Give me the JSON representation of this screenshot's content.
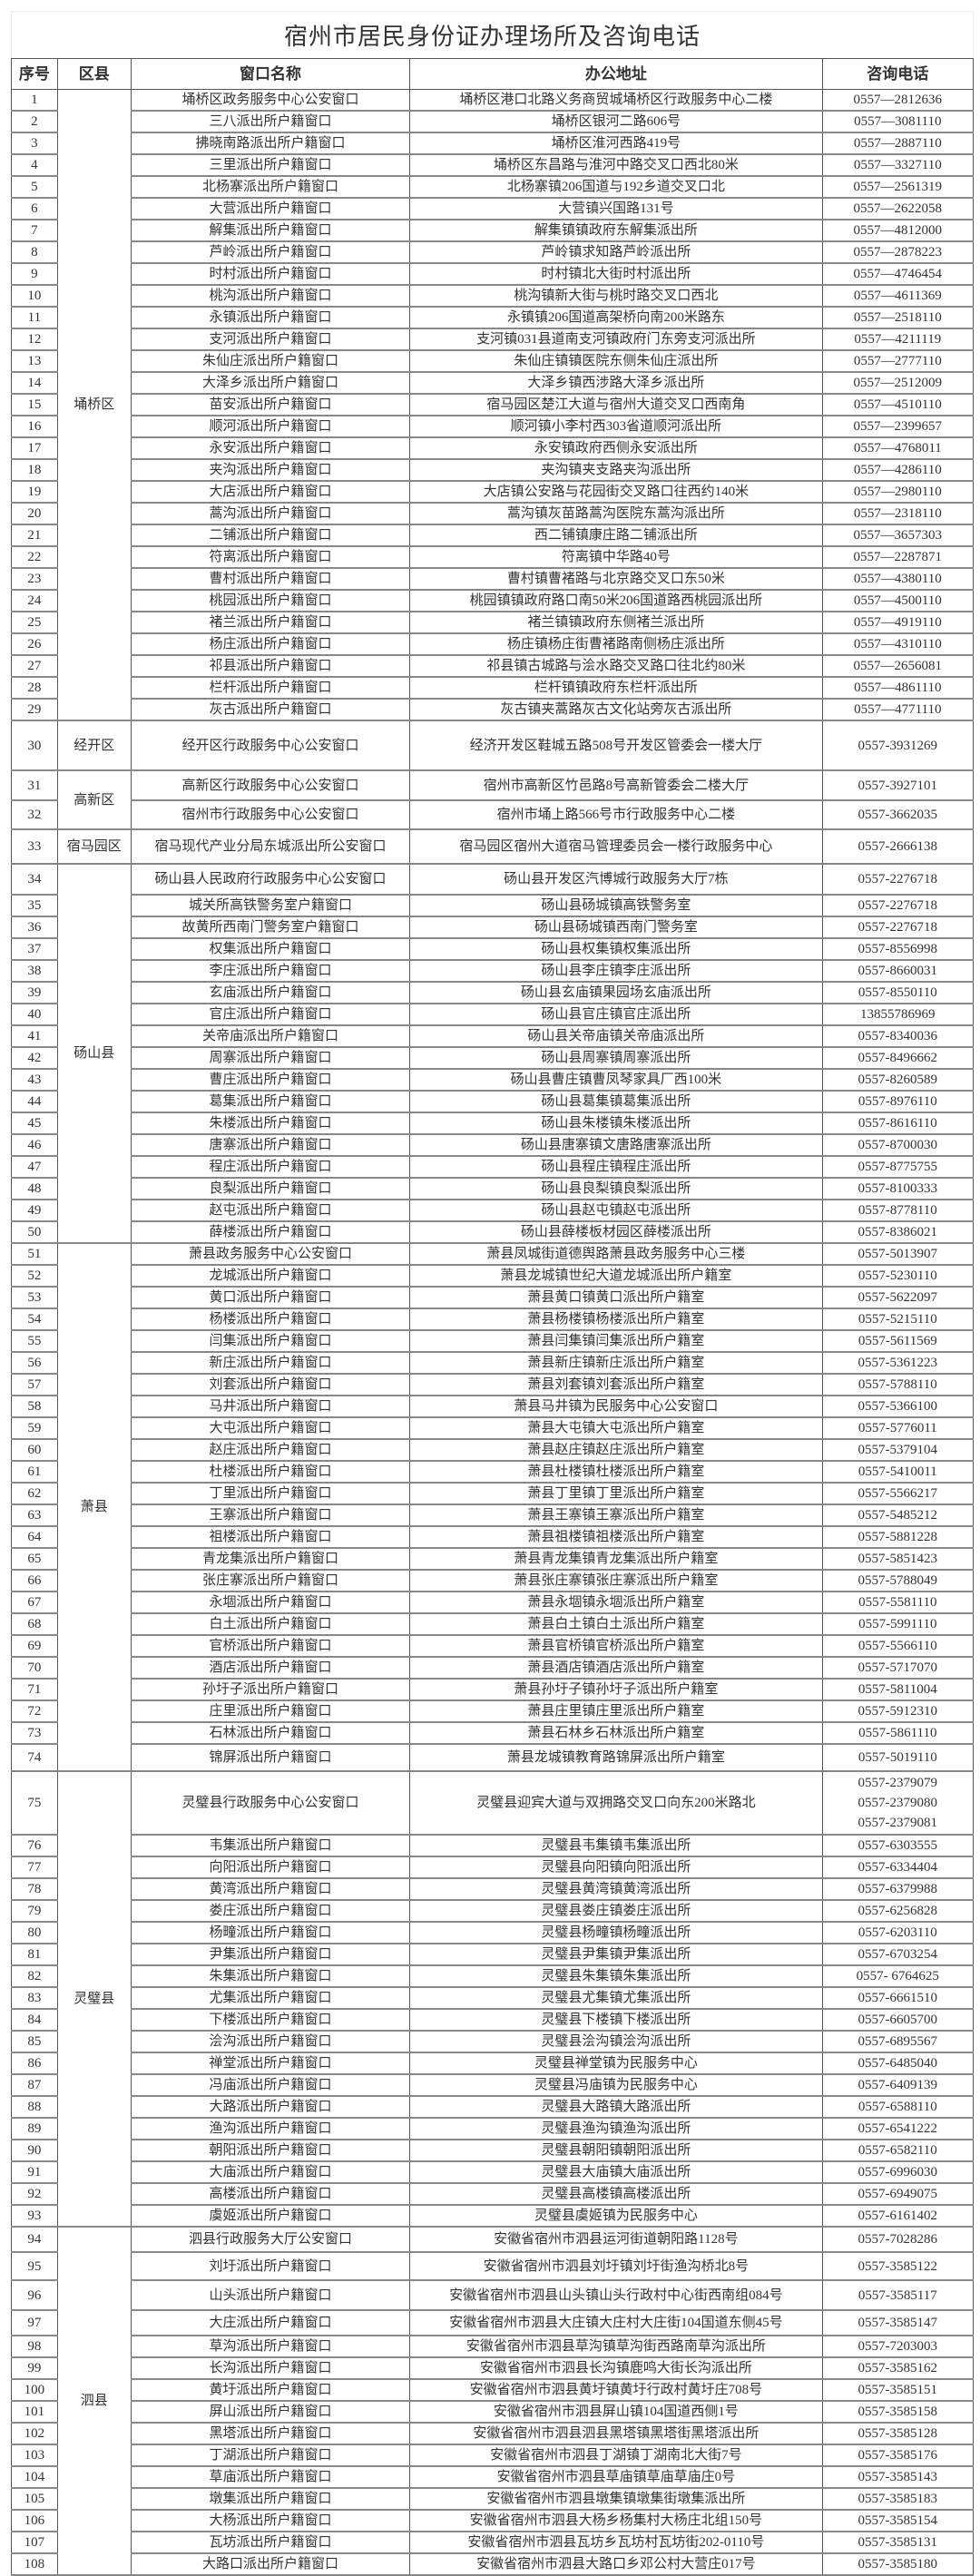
{
  "title": "宿州市居民身份证办理场所及咨询电话",
  "columns": [
    "序号",
    "区县",
    "窗口名称",
    "办公地址",
    "咨询电话"
  ],
  "groups": [
    {
      "district": "埇桥区",
      "rows": [
        {
          "no": "1",
          "window": "埇桥区政务服务中心公安窗口",
          "address": "埇桥区港口北路义务商贸城埇桥区行政服务中心二楼",
          "phone": [
            "0557—2812636"
          ]
        },
        {
          "no": "2",
          "window": "三八派出所户籍窗口",
          "address": "埇桥区银河二路606号",
          "phone": [
            "0557—3081110"
          ]
        },
        {
          "no": "3",
          "window": "拂晓南路派出所户籍窗口",
          "address": "埇桥区淮河西路419号",
          "phone": [
            "0557—2887110"
          ]
        },
        {
          "no": "4",
          "window": "三里派出所户籍窗口",
          "address": "埇桥区东昌路与淮河中路交叉口西北80米",
          "phone": [
            "0557—3327110"
          ]
        },
        {
          "no": "5",
          "window": "北杨寨派出所户籍窗口",
          "address": "北杨寨镇206国道与192乡道交叉口北",
          "phone": [
            "0557—2561319"
          ]
        },
        {
          "no": "6",
          "window": "大营派出所户籍窗口",
          "address": "大营镇兴国路131号",
          "phone": [
            "0557—2622058"
          ]
        },
        {
          "no": "7",
          "window": "解集派出所户籍窗口",
          "address": "解集镇镇政府东解集派出所",
          "phone": [
            "0557—4812000"
          ]
        },
        {
          "no": "8",
          "window": "芦岭派出所户籍窗口",
          "address": "芦岭镇求知路芦岭派出所",
          "phone": [
            "0557—2878223"
          ]
        },
        {
          "no": "9",
          "window": "时村派出所户籍窗口",
          "address": "时村镇北大街时村派出所",
          "phone": [
            "0557—4746454"
          ]
        },
        {
          "no": "10",
          "window": "桃沟派出所户籍窗口",
          "address": "桃沟镇新大街与桃时路交叉口西北",
          "phone": [
            "0557—4611369"
          ]
        },
        {
          "no": "11",
          "window": "永镇派出所户籍窗口",
          "address": "永镇镇206国道高架桥向南200米路东",
          "phone": [
            "0557—2518110"
          ]
        },
        {
          "no": "12",
          "window": "支河派出所户籍窗口",
          "address": "支河镇031县道南支河镇政府门东旁支河派出所",
          "phone": [
            "0557—4211119"
          ]
        },
        {
          "no": "13",
          "window": "朱仙庄派出所户籍窗口",
          "address": "朱仙庄镇镇医院东侧朱仙庄派出所",
          "phone": [
            "0557—2777110"
          ]
        },
        {
          "no": "14",
          "window": "大泽乡派出所户籍窗口",
          "address": "大泽乡镇西涉路大泽乡派出所",
          "phone": [
            "0557—2512009"
          ]
        },
        {
          "no": "15",
          "window": "苗安派出所户籍窗口",
          "address": "宿马园区楚江大道与宿州大道交叉口西南角",
          "phone": [
            "0557—4510110"
          ]
        },
        {
          "no": "16",
          "window": "顺河派出所户籍窗口",
          "address": "顺河镇小李村西303省道顺河派出所",
          "phone": [
            "0557—2399657"
          ]
        },
        {
          "no": "17",
          "window": "永安派出所户籍窗口",
          "address": "永安镇政府西侧永安派出所",
          "phone": [
            "0557—4768011"
          ]
        },
        {
          "no": "18",
          "window": "夹沟派出所户籍窗口",
          "address": "夹沟镇夹支路夹沟派出所",
          "phone": [
            "0557—4286110"
          ]
        },
        {
          "no": "19",
          "window": "大店派出所户籍窗口",
          "address": "大店镇公安路与花园街交叉路口往西约140米",
          "phone": [
            "0557—2980110"
          ]
        },
        {
          "no": "20",
          "window": "蒿沟派出所户籍窗口",
          "address": "蒿沟镇灰苗路蒿沟医院东蒿沟派出所",
          "phone": [
            "0557—2318110"
          ]
        },
        {
          "no": "21",
          "window": "二铺派出所户籍窗口",
          "address": "西二铺镇康庄路二铺派出所",
          "phone": [
            "0557—3657303"
          ]
        },
        {
          "no": "22",
          "window": "符离派出所户籍窗口",
          "address": "符离镇中华路40号",
          "phone": [
            "0557—2287871"
          ]
        },
        {
          "no": "23",
          "window": "曹村派出所户籍窗口",
          "address": "曹村镇曹褚路与北京路交叉口东50米",
          "phone": [
            "0557—4380110"
          ]
        },
        {
          "no": "24",
          "window": "桃园派出所户籍窗口",
          "address": "桃园镇镇政府路口南50米206国道路西桃园派出所",
          "phone": [
            "0557—4500110"
          ]
        },
        {
          "no": "25",
          "window": "褚兰派出所户籍窗口",
          "address": "褚兰镇镇政府东侧褚兰派出所",
          "phone": [
            "0557—4919110"
          ]
        },
        {
          "no": "26",
          "window": "杨庄派出所户籍窗口",
          "address": "杨庄镇杨庄街曹褚路南侧杨庄派出所",
          "phone": [
            "0557—4310110"
          ]
        },
        {
          "no": "27",
          "window": "祁县派出所户籍窗口",
          "address": "祁县镇古城路与浍水路交叉路口往北约80米",
          "phone": [
            "0557—2656081"
          ]
        },
        {
          "no": "28",
          "window": "栏杆派出所户籍窗口",
          "address": "栏杆镇镇政府东栏杆派出所",
          "phone": [
            "0557—4861110"
          ]
        },
        {
          "no": "29",
          "window": "灰古派出所户籍窗口",
          "address": "灰古镇夹蒿路灰古文化站旁灰古派出所",
          "phone": [
            "0557—4771110"
          ]
        }
      ]
    },
    {
      "district": "经开区",
      "rows": [
        {
          "no": "30",
          "window": "经开区行政服务中心公安窗口",
          "address": "经济开发区鞋城五路508号开发区管委会一楼大厅",
          "phone": [
            "0557-3931269"
          ]
        }
      ]
    },
    {
      "district": "高新区",
      "rows": [
        {
          "no": "31",
          "window": "高新区行政服务中心公安窗口",
          "address": "宿州市高新区竹邑路8号高新管委会二楼大厅",
          "phone": [
            "0557-3927101"
          ]
        },
        {
          "no": "32",
          "window": "宿州市行政服务中心公安窗口",
          "address": "宿州市埇上路566号市行政服务中心二楼",
          "phone": [
            "0557-3662035"
          ]
        }
      ]
    },
    {
      "district": "宿马园区",
      "rows": [
        {
          "no": "33",
          "window": "宿马现代产业分局东城派出所公安窗口",
          "address": "宿马园区宿州大道宿马管理委员会一楼行政服务中心",
          "phone": [
            "0557-2666138"
          ]
        }
      ]
    },
    {
      "district": "砀山县",
      "rows": [
        {
          "no": "34",
          "window": "砀山县人民政府行政服务中心公安窗口",
          "address": "砀山县开发区汽博城行政服务大厅7栋",
          "phone": [
            "0557-2276718"
          ]
        },
        {
          "no": "35",
          "window": "城关所高铁警务室户籍窗口",
          "address": "砀山县砀城镇高铁警务室",
          "phone": [
            "0557-2276718"
          ]
        },
        {
          "no": "36",
          "window": "故黄所西南门警务室户籍窗口",
          "address": "砀山县砀城镇西南门警务室",
          "phone": [
            "0557-2276718"
          ]
        },
        {
          "no": "37",
          "window": "权集派出所户籍窗口",
          "address": "砀山县权集镇权集派出所",
          "phone": [
            "0557-8556998"
          ]
        },
        {
          "no": "38",
          "window": "李庄派出所户籍窗口",
          "address": "砀山县李庄镇李庄派出所",
          "phone": [
            "0557-8660031"
          ]
        },
        {
          "no": "39",
          "window": "玄庙派出所户籍窗口",
          "address": "砀山县玄庙镇果园场玄庙派出所",
          "phone": [
            "0557-8550110"
          ]
        },
        {
          "no": "40",
          "window": "官庄派出所户籍窗口",
          "address": "砀山县官庄镇官庄派出所",
          "phone": [
            "13855786969"
          ]
        },
        {
          "no": "41",
          "window": "关帝庙派出所户籍窗口",
          "address": "砀山县关帝庙镇关帝庙派出所",
          "phone": [
            "0557-8340036"
          ]
        },
        {
          "no": "42",
          "window": "周寨派出所户籍窗口",
          "address": "砀山县周寨镇周寨派出所",
          "phone": [
            "0557-8496662"
          ]
        },
        {
          "no": "43",
          "window": "曹庄派出所户籍窗口",
          "address": "砀山县曹庄镇曹凤琴家具厂西100米",
          "phone": [
            "0557-8260589"
          ]
        },
        {
          "no": "44",
          "window": "葛集派出所户籍窗口",
          "address": "砀山县葛集镇葛集派出所",
          "phone": [
            "0557-8976110"
          ]
        },
        {
          "no": "45",
          "window": "朱楼派出所户籍窗口",
          "address": "砀山县朱楼镇朱楼派出所",
          "phone": [
            "0557-8616110"
          ]
        },
        {
          "no": "46",
          "window": "唐寨派出所户籍窗口",
          "address": "砀山县唐寨镇文唐路唐寨派出所",
          "phone": [
            "0557-8700030"
          ]
        },
        {
          "no": "47",
          "window": "程庄派出所户籍窗口",
          "address": "砀山县程庄镇程庄派出所",
          "phone": [
            "0557-8775755"
          ]
        },
        {
          "no": "48",
          "window": "良梨派出所户籍窗口",
          "address": "砀山县良梨镇良梨派出所",
          "phone": [
            "0557-8100333"
          ]
        },
        {
          "no": "49",
          "window": "赵屯派出所户籍窗口",
          "address": "砀山县赵屯镇赵屯派出所",
          "phone": [
            "0557-8778110"
          ]
        },
        {
          "no": "50",
          "window": "薛楼派出所户籍窗口",
          "address": "砀山县薛楼板材园区薛楼派出所",
          "phone": [
            "0557-8386021"
          ]
        }
      ]
    },
    {
      "district": "萧县",
      "rows": [
        {
          "no": "51",
          "window": "萧县政务服务中心公安窗口",
          "address": "萧县凤城街道德舆路萧县政务服务中心三楼",
          "phone": [
            "0557-5013907"
          ]
        },
        {
          "no": "52",
          "window": "龙城派出所户籍窗口",
          "address": "萧县龙城镇世纪大道龙城派出所户籍室",
          "phone": [
            "0557-5230110"
          ]
        },
        {
          "no": "53",
          "window": "黄口派出所户籍窗口",
          "address": "萧县黄口镇黄口派出所户籍室",
          "phone": [
            "0557-5622097"
          ]
        },
        {
          "no": "54",
          "window": "杨楼派出所户籍窗口",
          "address": "萧县杨楼镇杨楼派出所户籍室",
          "phone": [
            "0557-5215110"
          ]
        },
        {
          "no": "55",
          "window": "闫集派出所户籍窗口",
          "address": "萧县闫集镇闫集派出所户籍室",
          "phone": [
            "0557-5611569"
          ]
        },
        {
          "no": "56",
          "window": "新庄派出所户籍窗口",
          "address": "萧县新庄镇新庄派出所户籍室",
          "phone": [
            "0557-5361223"
          ]
        },
        {
          "no": "57",
          "window": "刘套派出所户籍窗口",
          "address": "萧县刘套镇刘套派出所户籍室",
          "phone": [
            "0557-5788110"
          ]
        },
        {
          "no": "58",
          "window": "马井派出所户籍窗口",
          "address": "萧县马井镇为民服务中心公安窗口",
          "phone": [
            "0557-5366100"
          ]
        },
        {
          "no": "59",
          "window": "大屯派出所户籍窗口",
          "address": "萧县大屯镇大屯派出所户籍室",
          "phone": [
            "0557-5776011"
          ]
        },
        {
          "no": "60",
          "window": "赵庄派出所户籍窗口",
          "address": "萧县赵庄镇赵庄派出所户籍室",
          "phone": [
            "0557-5379104"
          ]
        },
        {
          "no": "61",
          "window": "杜楼派出所户籍窗口",
          "address": "萧县杜楼镇杜楼派出所户籍室",
          "phone": [
            "0557-5410011"
          ]
        },
        {
          "no": "62",
          "window": "丁里派出所户籍窗口",
          "address": "萧县丁里镇丁里派出所户籍室",
          "phone": [
            "0557-5566217"
          ]
        },
        {
          "no": "63",
          "window": "王寨派出所户籍窗口",
          "address": "萧县王寨镇王寨派出所户籍室",
          "phone": [
            "0557-5485212"
          ]
        },
        {
          "no": "64",
          "window": "祖楼派出所户籍窗口",
          "address": "萧县祖楼镇祖楼派出所户籍室",
          "phone": [
            "0557-5881228"
          ]
        },
        {
          "no": "65",
          "window": "青龙集派出所户籍窗口",
          "address": "萧县青龙集镇青龙集派出所户籍室",
          "phone": [
            "0557-5851423"
          ]
        },
        {
          "no": "66",
          "window": "张庄寨派出所户籍窗口",
          "address": "萧县张庄寨镇张庄寨派出所户籍室",
          "phone": [
            "0557-5788049"
          ]
        },
        {
          "no": "67",
          "window": "永堌派出所户籍窗口",
          "address": "萧县永堌镇永堌派出所户籍室",
          "phone": [
            "0557-5581110"
          ]
        },
        {
          "no": "68",
          "window": "白土派出所户籍窗口",
          "address": "萧县白土镇白土派出所户籍室",
          "phone": [
            "0557-5991110"
          ]
        },
        {
          "no": "69",
          "window": "官桥派出所户籍窗口",
          "address": "萧县官桥镇官桥派出所户籍室",
          "phone": [
            "0557-5566110"
          ]
        },
        {
          "no": "70",
          "window": "酒店派出所户籍窗口",
          "address": "萧县酒店镇酒店派出所户籍室",
          "phone": [
            "0557-5717070"
          ]
        },
        {
          "no": "71",
          "window": "孙圩子派出所户籍窗口",
          "address": "萧县孙圩子镇孙圩子派出所户籍室",
          "phone": [
            "0557-5811004"
          ]
        },
        {
          "no": "72",
          "window": "庄里派出所户籍窗口",
          "address": "萧县庄里镇庄里派出所户籍室",
          "phone": [
            "0557-5912310"
          ]
        },
        {
          "no": "73",
          "window": "石林派出所户籍窗口",
          "address": "萧县石林乡石林派出所户籍室",
          "phone": [
            "0557-5861110"
          ]
        },
        {
          "no": "74",
          "window": "锦屏派出所户籍窗口",
          "address": "萧县龙城镇教育路锦屏派出所户籍室",
          "phone": [
            "0557-5019110"
          ]
        }
      ]
    },
    {
      "district": "灵璧县",
      "rows": [
        {
          "no": "75",
          "window": "灵璧县行政服务中心公安窗口",
          "address": "灵璧县迎宾大道与双拥路交叉口向东200米路北",
          "phone": [
            "0557-2379079",
            "0557-2379080",
            "0557-2379081"
          ]
        },
        {
          "no": "76",
          "window": "韦集派出所户籍窗口",
          "address": "灵璧县韦集镇韦集派出所",
          "phone": [
            "0557-6303555"
          ]
        },
        {
          "no": "77",
          "window": "向阳派出所户籍窗口",
          "address": "灵璧县向阳镇向阳派出所",
          "phone": [
            "0557-6334404"
          ]
        },
        {
          "no": "78",
          "window": "黄湾派出所户籍窗口",
          "address": "灵璧县黄湾镇黄湾派出所",
          "phone": [
            "0557-6379988"
          ]
        },
        {
          "no": "79",
          "window": "娄庄派出所户籍窗口",
          "address": "灵璧县娄庄镇娄庄派出所",
          "phone": [
            "0557-6256828"
          ]
        },
        {
          "no": "80",
          "window": "杨疃派出所户籍窗口",
          "address": "灵璧县杨疃镇杨疃派出所",
          "phone": [
            "0557-6203110"
          ]
        },
        {
          "no": "81",
          "window": "尹集派出所户籍窗口",
          "address": "灵璧县尹集镇尹集派出所",
          "phone": [
            "0557-6703254"
          ]
        },
        {
          "no": "82",
          "window": "朱集派出所户籍窗口",
          "address": "灵璧县朱集镇朱集派出所",
          "phone": [
            "0557- 6764625"
          ]
        },
        {
          "no": "83",
          "window": "尤集派出所户籍窗口",
          "address": "灵璧县尤集镇尤集派出所",
          "phone": [
            "0557-6661510"
          ]
        },
        {
          "no": "84",
          "window": "下楼派出所户籍窗口",
          "address": "灵璧县下楼镇下楼派出所",
          "phone": [
            "0557-6605700"
          ]
        },
        {
          "no": "85",
          "window": "浍沟派出所户籍窗口",
          "address": "灵璧县浍沟镇浍沟派出所",
          "phone": [
            "0557-6895567"
          ]
        },
        {
          "no": "86",
          "window": "禅堂派出所户籍窗口",
          "address": "灵璧县禅堂镇为民服务中心",
          "phone": [
            "0557-6485040"
          ]
        },
        {
          "no": "87",
          "window": "冯庙派出所户籍窗口",
          "address": "灵璧县冯庙镇为民服务中心",
          "phone": [
            "0557-6409139"
          ]
        },
        {
          "no": "88",
          "window": "大路派出所户籍窗口",
          "address": "灵璧县大路镇大路派出所",
          "phone": [
            "0557-6588110"
          ]
        },
        {
          "no": "89",
          "window": "渔沟派出所户籍窗口",
          "address": "灵璧县渔沟镇渔沟派出所",
          "phone": [
            "0557-6541222"
          ]
        },
        {
          "no": "90",
          "window": "朝阳派出所户籍窗口",
          "address": "灵璧县朝阳镇朝阳派出所",
          "phone": [
            "0557-6582110"
          ]
        },
        {
          "no": "91",
          "window": "大庙派出所户籍窗口",
          "address": "灵璧县大庙镇大庙派出所",
          "phone": [
            "0557-6996030"
          ]
        },
        {
          "no": "92",
          "window": "高楼派出所户籍窗口",
          "address": "灵璧县高楼镇高楼派出所",
          "phone": [
            "0557-6949075"
          ]
        },
        {
          "no": "93",
          "window": "虞姬派出所户籍窗口",
          "address": "灵璧县虞姬镇为民服务中心",
          "phone": [
            "0557-6161402"
          ]
        }
      ]
    },
    {
      "district": "泗县",
      "rows": [
        {
          "no": "94",
          "window": "泗县行政服务大厅公安窗口",
          "address": "安徽省宿州市泗县运河街道朝阳路1128号",
          "phone": [
            "0557-7028286"
          ]
        },
        {
          "no": "95",
          "window": "刘圩派出所户籍窗口",
          "address": "安徽省宿州市泗县刘圩镇刘圩街渔沟桥北8号",
          "phone": [
            "0557-3585122"
          ]
        },
        {
          "no": "96",
          "window": "山头派出所户籍窗口",
          "address": "安徽省宿州市泗县山头镇山头行政村中心街西南组084号",
          "phone": [
            "0557-3585117"
          ]
        },
        {
          "no": "97",
          "window": "大庄派出所户籍窗口",
          "address": "安徽省宿州市泗县大庄镇大庄村大庄街104国道东侧45号",
          "phone": [
            "0557-3585147"
          ]
        },
        {
          "no": "98",
          "window": "草沟派出所户籍窗口",
          "address": "安徽省宿州市泗县草沟镇草沟街西路南草沟派出所",
          "phone": [
            "0557-7203003"
          ]
        },
        {
          "no": "99",
          "window": "长沟派出所户籍窗口",
          "address": "安徽省宿州市泗县长沟镇鹿鸣大街长沟派出所",
          "phone": [
            "0557-3585162"
          ]
        },
        {
          "no": "100",
          "window": "黄圩派出所户籍窗口",
          "address": "安徽省宿州市泗县黄圩镇黄圩行政村黄圩庄708号",
          "phone": [
            "0557-3585151"
          ]
        },
        {
          "no": "101",
          "window": "屏山派出所户籍窗口",
          "address": "安徽省宿州市泗县屏山镇104国道西侧1号",
          "phone": [
            "0557-3585158"
          ]
        },
        {
          "no": "102",
          "window": "黑塔派出所户籍窗口",
          "address": "安徽省宿州市泗县泗县黑塔镇黑塔街黑塔派出所",
          "phone": [
            "0557-3585128"
          ]
        },
        {
          "no": "103",
          "window": "丁湖派出所户籍窗口",
          "address": "安徽省宿州市泗县丁湖镇丁湖南北大街7号",
          "phone": [
            "0557-3585176"
          ]
        },
        {
          "no": "104",
          "window": "草庙派出所户籍窗口",
          "address": "安徽省宿州市泗县草庙镇草庙草庙庄0号",
          "phone": [
            "0557-3585143"
          ]
        },
        {
          "no": "105",
          "window": "墩集派出所户籍窗口",
          "address": "安徽省宿州市泗县墩集镇墩集街墩集派出所",
          "phone": [
            "0557-3585183"
          ]
        },
        {
          "no": "106",
          "window": "大杨派出所户籍窗口",
          "address": "安徽省宿州市泗县大杨乡杨集村大杨庄北组150号",
          "phone": [
            "0557-3585154"
          ]
        },
        {
          "no": "107",
          "window": "瓦坊派出所户籍窗口",
          "address": "安徽省宿州市泗县瓦坊乡瓦坊村瓦坊街202-0110号",
          "phone": [
            "0557-3585131"
          ]
        },
        {
          "no": "108",
          "window": "大路口派出所户籍窗口",
          "address": "安徽省宿州市泗县大路口乡邓公村大营庄017号",
          "phone": [
            "0557-3585180"
          ]
        }
      ]
    }
  ]
}
